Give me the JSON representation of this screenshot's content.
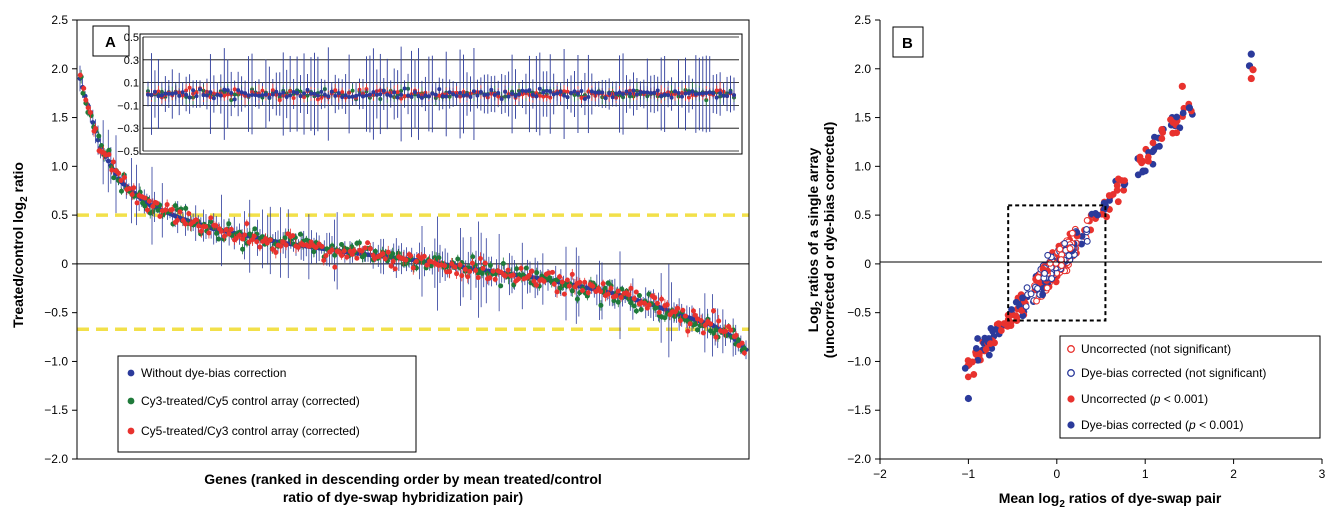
{
  "chart_data": [
    {
      "panel": "A",
      "type": "scatter",
      "ylabel": "Treated/control log2 ratio",
      "ylabel_base": "Treated/control log",
      "ylabel_sub": "2",
      "ylabel_tail": " ratio",
      "xlabel_line1": "Genes (ranked in descending order by mean treated/control",
      "xlabel_line2": "ratio of dye-swap hybridization pair)",
      "ylim": [
        -2.0,
        2.5
      ],
      "yticks": [
        "2.5",
        "2.0",
        "1.5",
        "1.0",
        "0.5",
        "0",
        "−0.5",
        "−1.0",
        "−1.5",
        "−2.0"
      ],
      "ytick_values": [
        2.5,
        2.0,
        1.5,
        1.0,
        0.5,
        0,
        -0.5,
        -1.0,
        -1.5,
        -2.0
      ],
      "reference_lines": [
        0.5,
        -0.67
      ],
      "series": [
        {
          "name": "Without dye-bias correction",
          "color": "#2b3a9b"
        },
        {
          "name": "Cy3-treated/Cy5 control array (corrected)",
          "color": "#1f7a3a"
        },
        {
          "name": "Cy5-treated/Cy3 control array (corrected)",
          "color": "#e8322e"
        }
      ],
      "mean_curve": {
        "rank": [
          0.0,
          0.03,
          0.06,
          0.1,
          0.15,
          0.2,
          0.3,
          0.4,
          0.5,
          0.6,
          0.7,
          0.8,
          0.86,
          0.9,
          0.95,
          0.98,
          1.0
        ],
        "value": [
          1.9,
          1.2,
          0.85,
          0.62,
          0.47,
          0.36,
          0.22,
          0.12,
          0.04,
          -0.06,
          -0.16,
          -0.3,
          -0.42,
          -0.52,
          -0.63,
          -0.75,
          -0.88
        ]
      },
      "points_per_series": 260,
      "inset": {
        "ylim": [
          -0.5,
          0.5
        ],
        "yticks": [
          "0.5",
          "0.3",
          "0.1",
          "−0.1",
          "−0.3",
          "−0.5"
        ],
        "ytick_values": [
          0.5,
          0.3,
          0.1,
          -0.1,
          -0.3,
          -0.5
        ]
      }
    },
    {
      "panel": "B",
      "type": "scatter",
      "ylabel_line1_base": "Log",
      "ylabel_line1_sub": "2",
      "ylabel_line1_tail": " ratios of a single array",
      "ylabel_line2": "(uncorrected or dye-bias corrected)",
      "xlabel_base": "Mean log",
      "xlabel_sub": "2",
      "xlabel_tail": " ratios of dye-swap pair",
      "xlim": [
        -2,
        3
      ],
      "ylim": [
        -2.0,
        2.5
      ],
      "xticks": [
        "−2",
        "−1",
        "0",
        "1",
        "2",
        "3"
      ],
      "xtick_values": [
        -2,
        -1,
        0,
        1,
        2,
        3
      ],
      "yticks": [
        "2.5",
        "2.0",
        "1.5",
        "1.0",
        "0.5",
        "0",
        "−0.5",
        "−1.0",
        "−1.5",
        "−2.0"
      ],
      "ytick_values": [
        2.5,
        2.0,
        1.5,
        1.0,
        0.5,
        0,
        -0.5,
        -1.0,
        -1.5,
        -2.0
      ],
      "dashed_box": {
        "x": [
          -0.55,
          0.55
        ],
        "y": [
          -0.58,
          0.6
        ]
      },
      "series": [
        {
          "name": "Uncorrected (not significant)",
          "color": "#e8322e",
          "filled": false
        },
        {
          "name": "Dye-bias corrected (not significant)",
          "color": "#2b3a9b",
          "filled": false
        },
        {
          "name": "Uncorrected (p < 0.001)",
          "name_base": "Uncorrected (",
          "name_tail": " < 0.001)",
          "color": "#e8322e",
          "filled": true
        },
        {
          "name": "Dye-bias corrected (p < 0.001)",
          "name_base": "Dye-bias corrected (",
          "name_tail": " < 0.001)",
          "color": "#2b3a9b",
          "filled": true
        }
      ],
      "p_symbol": "p",
      "notable_points": [
        {
          "x": 2.2,
          "y": 2.15,
          "color": "#2b3a9b"
        },
        {
          "x": 2.18,
          "y": 2.03,
          "color": "#2b3a9b"
        },
        {
          "x": 2.22,
          "y": 1.99,
          "color": "#e8322e"
        },
        {
          "x": 2.2,
          "y": 1.9,
          "color": "#e8322e"
        },
        {
          "x": -1.0,
          "y": -1.38,
          "color": "#2b3a9b"
        },
        {
          "x": 1.5,
          "y": 1.6,
          "color": "#2b3a9b"
        },
        {
          "x": 1.42,
          "y": 1.82,
          "color": "#e8322e"
        }
      ]
    }
  ]
}
